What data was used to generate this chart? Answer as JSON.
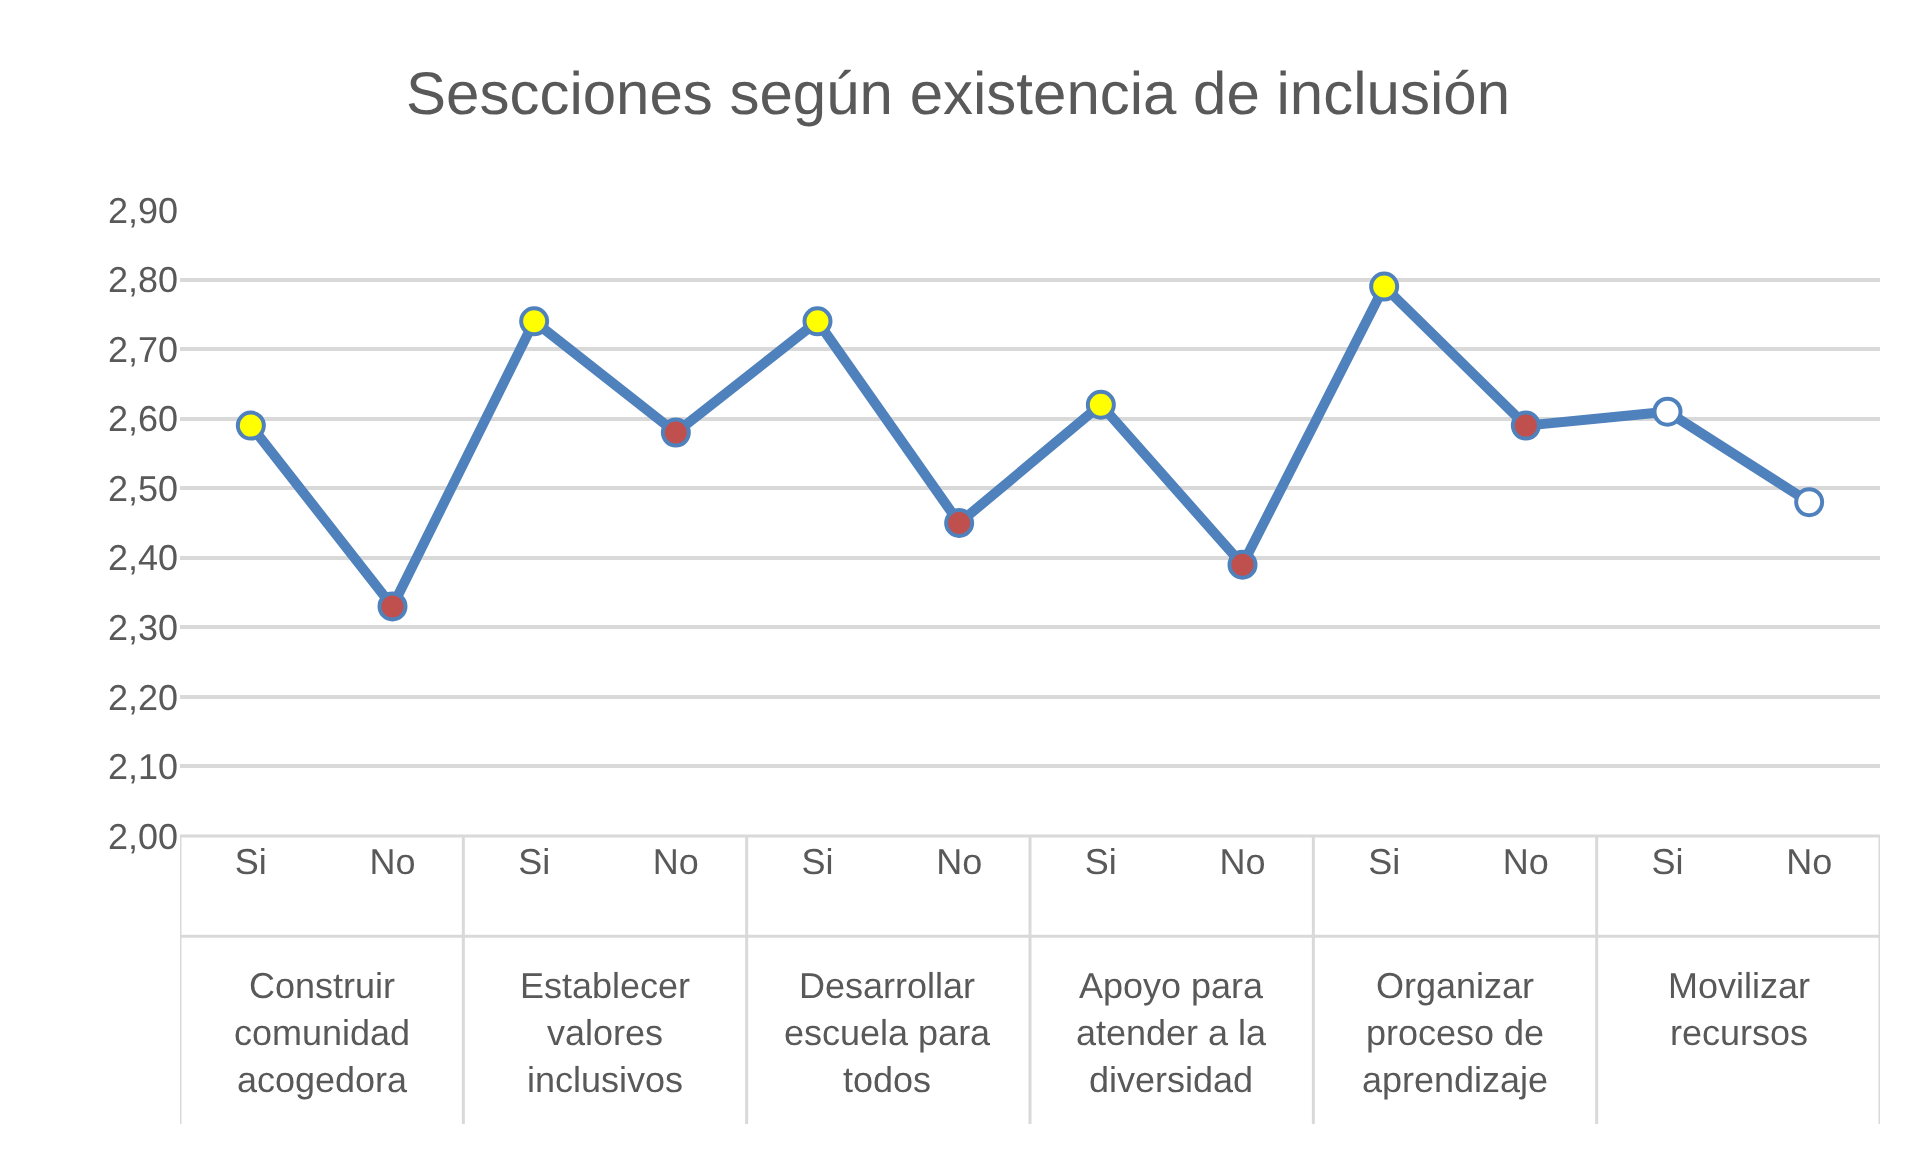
{
  "chart_data": {
    "type": "line",
    "title": "Sescciones según existencia de inclusión",
    "categories": [
      "Si",
      "No",
      "Si",
      "No",
      "Si",
      "No",
      "Si",
      "No",
      "Si",
      "No",
      "Si",
      "No"
    ],
    "series": [
      {
        "color": "#4f81bd",
        "values": [
          2.59,
          2.33,
          2.74,
          2.58,
          2.74,
          2.45,
          2.62,
          2.39,
          2.79,
          2.59,
          2.61,
          2.48
        ],
        "colors": [
          "#ffff00",
          "#c0504d",
          "#ffff00",
          "#c0504d",
          "#ffff00",
          "#c0504d",
          "#ffff00",
          "#c0504d",
          "#ffff00",
          "#c0504d",
          "#ffffff",
          "#ffffff"
        ]
      }
    ],
    "annotations": [
      "Construir\ncomunidad\nacogedora",
      "Establecer\nvalores\ninclusivos",
      "Desarrollar\nescuela para\ntodos",
      "Apoyo para\natender a la\ndiversidad",
      "Organizar\nproceso de\naprendizaje",
      "Movilizar\nrecursos"
    ],
    "ylim": [
      2.0,
      2.9
    ],
    "yticks": [
      {
        "value": 2.0,
        "label": "2,00"
      },
      {
        "value": 2.1,
        "label": "2,10"
      },
      {
        "value": 2.2,
        "label": "2,20"
      },
      {
        "value": 2.3,
        "label": "2,30"
      },
      {
        "value": 2.4,
        "label": "2,40"
      },
      {
        "value": 2.5,
        "label": "2,50"
      },
      {
        "value": 2.6,
        "label": "2,60"
      },
      {
        "value": 2.7,
        "label": "2,70"
      },
      {
        "value": 2.8,
        "label": "2,80"
      },
      {
        "value": 2.9,
        "label": "2,90"
      }
    ],
    "grid": "y",
    "legend": false,
    "marker": "circle",
    "line_style": "solid"
  }
}
